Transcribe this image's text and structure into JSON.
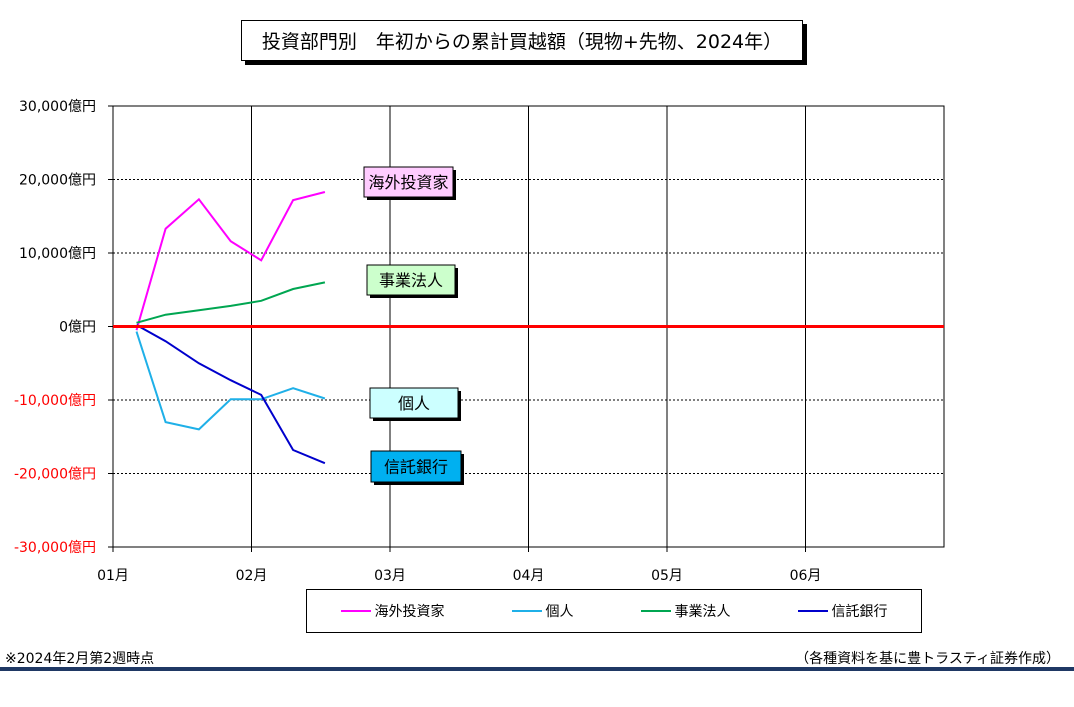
{
  "title": "投資部門別　年初からの累計買越額（現物+先物、2024年）",
  "chart_data": {
    "type": "line",
    "title": "投資部門別　年初からの累計買越額（現物+先物、2024年）",
    "x_tick_labels": [
      "01月",
      "02月",
      "03月",
      "04月",
      "05月",
      "06月"
    ],
    "y_tick_labels": [
      "30,000億円",
      "20,000億円",
      "10,000億円",
      "0億円",
      "-10,000億円",
      "-20,000億円",
      "-30,000億円"
    ],
    "y_tick_values": [
      30000,
      20000,
      10000,
      0,
      -10000,
      -20000,
      -30000
    ],
    "ylim": [
      -30000,
      30000
    ],
    "unit": "億円",
    "x_weeks": [
      0.17,
      0.38,
      0.62,
      0.85,
      1.07,
      1.3,
      1.53
    ],
    "grid": "horizontal dotted at each 10,000; vertical solid at each month",
    "zero_line_color": "#ff0000",
    "negative_tick_color": "#ff0000",
    "series": [
      {
        "name": "海外投資家",
        "color": "#ff00ff",
        "values": [
          -500,
          13300,
          17300,
          11600,
          9000,
          17200,
          18300
        ]
      },
      {
        "name": "個人",
        "color": "#1fb0e8",
        "values": [
          -700,
          -13000,
          -14000,
          -9900,
          -9900,
          -8400,
          -9800
        ]
      },
      {
        "name": "事業法人",
        "color": "#00a651",
        "values": [
          500,
          1600,
          2200,
          2800,
          3500,
          5100,
          6000
        ]
      },
      {
        "name": "信託銀行",
        "color": "#0000cc",
        "values": [
          200,
          -2000,
          -5000,
          -7300,
          -9300,
          -16800,
          -18600
        ]
      }
    ],
    "series_labels": [
      {
        "text": "海外投資家",
        "fill": "#ffccff"
      },
      {
        "text": "事業法人",
        "fill": "#ccffcc"
      },
      {
        "text": "個人",
        "fill": "#ccffff"
      },
      {
        "text": "信託銀行",
        "fill": "#00b0f0"
      }
    ]
  },
  "legend": [
    "海外投資家",
    "個人",
    "事業法人",
    "信託銀行"
  ],
  "footnote_left": "※2024年2月第2週時点",
  "footnote_right": "（各種資料を基に豊トラスティ証券作成）"
}
